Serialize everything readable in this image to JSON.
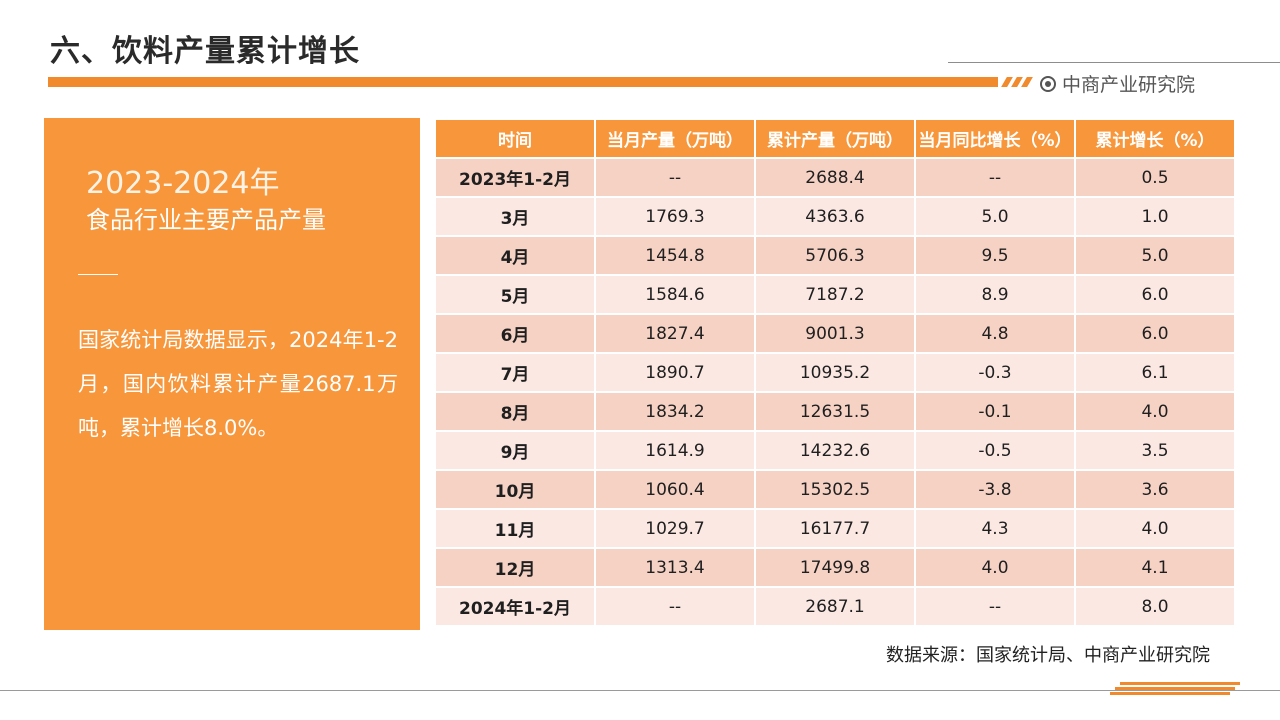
{
  "header": {
    "title": "六、饮料产量累计增长",
    "logo_text": "中商产业研究院",
    "accent_color": "#f08a2c"
  },
  "panel": {
    "years": "2023-2024年",
    "subtitle": "食品行业主要产品产量",
    "description": "国家统计局数据显示，2024年1-2月，国内饮料累计产量2687.1万吨，累计增长8.0%。"
  },
  "table": {
    "headers": [
      "时间",
      "当月产量（万吨）",
      "累计产量（万吨）",
      "当月同比增长（%）",
      "累计增长（%）"
    ],
    "rows": [
      [
        "2023年1-2月",
        "--",
        "2688.4",
        "--",
        "0.5"
      ],
      [
        "3月",
        "1769.3",
        "4363.6",
        "5.0",
        "1.0"
      ],
      [
        "4月",
        "1454.8",
        "5706.3",
        "9.5",
        "5.0"
      ],
      [
        "5月",
        "1584.6",
        "7187.2",
        "8.9",
        "6.0"
      ],
      [
        "6月",
        "1827.4",
        "9001.3",
        "4.8",
        "6.0"
      ],
      [
        "7月",
        "1890.7",
        "10935.2",
        "-0.3",
        "6.1"
      ],
      [
        "8月",
        "1834.2",
        "12631.5",
        "-0.1",
        "4.0"
      ],
      [
        "9月",
        "1614.9",
        "14232.6",
        "-0.5",
        "3.5"
      ],
      [
        "10月",
        "1060.4",
        "15302.5",
        "-3.8",
        "3.6"
      ],
      [
        "11月",
        "1029.7",
        "16177.7",
        "4.3",
        "4.0"
      ],
      [
        "12月",
        "1313.4",
        "17499.8",
        "4.0",
        "4.1"
      ],
      [
        "2024年1-2月",
        "--",
        "2687.1",
        "--",
        "8.0"
      ]
    ]
  },
  "footer": {
    "source": "数据来源：国家统计局、中商产业研究院"
  }
}
